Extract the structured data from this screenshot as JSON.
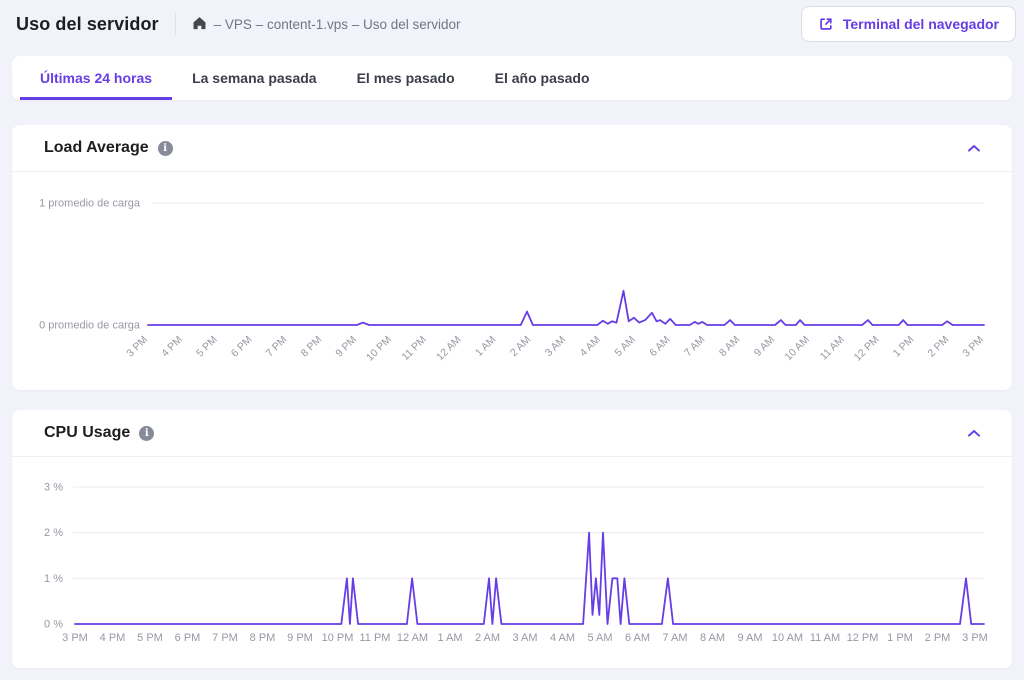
{
  "header": {
    "title": "Uso del servidor",
    "breadcrumb": "– VPS – content-1.vps – Uso del servidor",
    "terminal_button": "Terminal del navegador"
  },
  "tabs": [
    {
      "label": "Últimas 24 horas",
      "active": true
    },
    {
      "label": "La semana pasada",
      "active": false
    },
    {
      "label": "El mes pasado",
      "active": false
    },
    {
      "label": "El año pasado",
      "active": false
    }
  ],
  "panels": [
    {
      "title": "Load Average"
    },
    {
      "title": "CPU Usage"
    }
  ],
  "colors": {
    "accent": "#673DE6",
    "line": "#673DE6",
    "grid": "#ECECF1",
    "axis_text": "#9699A3",
    "page_bg": "#F2F2FB",
    "card_bg": "#FFFFFF",
    "muted_text": "#727586"
  },
  "chart_data": [
    {
      "id": "load",
      "type": "line",
      "title": "Load Average",
      "x_range_hours": [
        0,
        24
      ],
      "x_tick_labels": [
        "3 PM",
        "4 PM",
        "5 PM",
        "6 PM",
        "7 PM",
        "8 PM",
        "9 PM",
        "10 PM",
        "11 PM",
        "12 AM",
        "1 AM",
        "2 AM",
        "3 AM",
        "4 AM",
        "5 AM",
        "6 AM",
        "7 AM",
        "8 AM",
        "9 AM",
        "10 AM",
        "11 AM",
        "12 PM",
        "1 PM",
        "2 PM",
        "3 PM"
      ],
      "y_ticks": [
        {
          "value": 0,
          "label": "0 promedio de carga"
        },
        {
          "value": 1,
          "label": "1 promedio de carga"
        }
      ],
      "ylim": [
        0,
        1
      ],
      "line_color": "#673DE6",
      "grid_color": "#ECECF1",
      "axis_text_color": "#9699A3",
      "points": [
        [
          0,
          0
        ],
        [
          6.0,
          0
        ],
        [
          6.17,
          0.02
        ],
        [
          6.35,
          0
        ],
        [
          10.7,
          0
        ],
        [
          10.88,
          0.11
        ],
        [
          11.05,
          0
        ],
        [
          12.9,
          0
        ],
        [
          13.06,
          0.035
        ],
        [
          13.2,
          0.01
        ],
        [
          13.32,
          0.03
        ],
        [
          13.45,
          0.02
        ],
        [
          13.65,
          0.28
        ],
        [
          13.8,
          0.03
        ],
        [
          13.95,
          0.06
        ],
        [
          14.1,
          0.02
        ],
        [
          14.27,
          0.04
        ],
        [
          14.47,
          0.1
        ],
        [
          14.6,
          0.03
        ],
        [
          14.7,
          0.04
        ],
        [
          14.85,
          0.01
        ],
        [
          14.99,
          0.05
        ],
        [
          15.15,
          0
        ],
        [
          15.55,
          0
        ],
        [
          15.7,
          0.025
        ],
        [
          15.8,
          0.01
        ],
        [
          15.91,
          0.025
        ],
        [
          16.05,
          0
        ],
        [
          16.55,
          0
        ],
        [
          16.71,
          0.04
        ],
        [
          16.85,
          0
        ],
        [
          18.0,
          0
        ],
        [
          18.17,
          0.04
        ],
        [
          18.3,
          0
        ],
        [
          18.6,
          0
        ],
        [
          18.72,
          0.04
        ],
        [
          18.85,
          0
        ],
        [
          20.5,
          0
        ],
        [
          20.67,
          0.04
        ],
        [
          20.8,
          0
        ],
        [
          21.55,
          0
        ],
        [
          21.68,
          0.04
        ],
        [
          21.8,
          0
        ],
        [
          22.8,
          0
        ],
        [
          22.94,
          0.03
        ],
        [
          23.1,
          0
        ],
        [
          24,
          0
        ]
      ]
    },
    {
      "id": "cpu",
      "type": "line",
      "title": "CPU Usage",
      "x_range_hours": [
        0,
        24
      ],
      "x_tick_labels": [
        "3 PM",
        "4 PM",
        "5 PM",
        "6 PM",
        "7 PM",
        "8 PM",
        "9 PM",
        "10 PM",
        "11 PM",
        "12 AM",
        "1 AM",
        "2 AM",
        "3 AM",
        "4 AM",
        "5 AM",
        "6 AM",
        "7 AM",
        "8 AM",
        "9 AM",
        "10 AM",
        "11 AM",
        "12 PM",
        "1 PM",
        "2 PM",
        "3 PM"
      ],
      "y_ticks": [
        {
          "value": 0,
          "label": "0 %"
        },
        {
          "value": 1,
          "label": "1 %"
        },
        {
          "value": 2,
          "label": "2 %"
        },
        {
          "value": 3,
          "label": "3 %"
        }
      ],
      "ylim": [
        0,
        3
      ],
      "line_color": "#673DE6",
      "grid_color": "#ECECF1",
      "axis_text_color": "#9699A3",
      "points": [
        [
          0,
          0
        ],
        [
          7.1,
          0
        ],
        [
          7.25,
          1
        ],
        [
          7.33,
          0
        ],
        [
          7.41,
          1
        ],
        [
          7.55,
          0
        ],
        [
          8.85,
          0
        ],
        [
          8.99,
          1
        ],
        [
          9.13,
          0
        ],
        [
          10.9,
          0
        ],
        [
          11.04,
          1
        ],
        [
          11.13,
          0
        ],
        [
          11.23,
          1
        ],
        [
          11.37,
          0
        ],
        [
          13.55,
          0
        ],
        [
          13.71,
          2
        ],
        [
          13.8,
          0.2
        ],
        [
          13.89,
          1
        ],
        [
          13.98,
          0.2
        ],
        [
          14.08,
          2
        ],
        [
          14.2,
          0
        ],
        [
          14.33,
          1
        ],
        [
          14.46,
          1
        ],
        [
          14.55,
          0
        ],
        [
          14.65,
          1
        ],
        [
          14.78,
          0
        ],
        [
          15.65,
          0
        ],
        [
          15.81,
          1
        ],
        [
          15.95,
          0
        ],
        [
          23.6,
          0
        ],
        [
          23.76,
          1
        ],
        [
          23.9,
          0
        ],
        [
          24,
          0
        ]
      ]
    }
  ]
}
